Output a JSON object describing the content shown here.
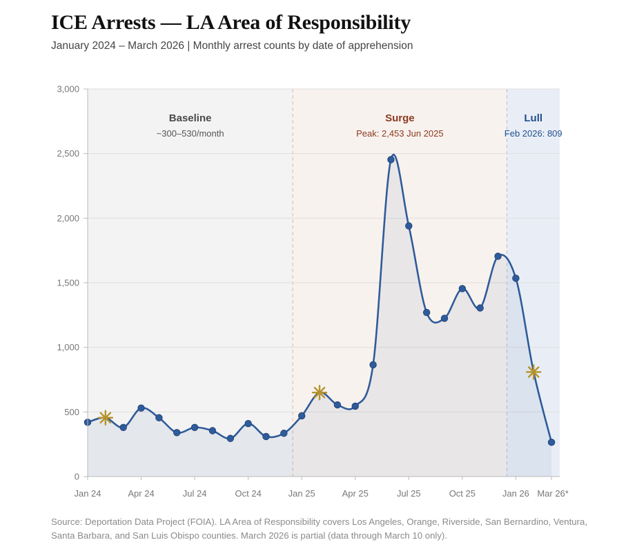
{
  "header": {
    "title": "ICE Arrests — LA Area of Responsibility",
    "subtitle": "January 2024 – March 2026  |  Monthly arrest counts by date of apprehension"
  },
  "source_note": "Source: Deportation Data Project (FOIA). LA Area of Responsibility covers Los Angeles, Orange, Riverside, San Bernardino, Ventura, Santa Barbara, and San Luis Obispo counties. March 2026 is partial (data through March 10 only).",
  "chart_data": {
    "type": "line",
    "ylim": [
      0,
      3000
    ],
    "y_ticks": [
      0,
      500,
      1000,
      1500,
      2000,
      2500,
      3000
    ],
    "y_tick_labels": [
      "0",
      "500",
      "1,000",
      "1,500",
      "2,000",
      "2,500",
      "3,000"
    ],
    "x_tick_labels": [
      "Jan 24",
      "Apr 24",
      "Jul 24",
      "Oct 24",
      "Jan 25",
      "Apr 25",
      "Jul 25",
      "Oct 25",
      "Jan 26",
      "Mar 26*"
    ],
    "x_tick_index": [
      0,
      3,
      6,
      9,
      12,
      15,
      18,
      21,
      24,
      26
    ],
    "x": [
      "2024-01",
      "2024-02",
      "2024-03",
      "2024-04",
      "2024-05",
      "2024-06",
      "2024-07",
      "2024-08",
      "2024-09",
      "2024-10",
      "2024-11",
      "2024-12",
      "2025-01",
      "2025-02",
      "2025-03",
      "2025-04",
      "2025-05",
      "2025-06",
      "2025-07",
      "2025-08",
      "2025-09",
      "2025-10",
      "2025-11",
      "2025-12",
      "2026-01",
      "2026-02",
      "2026-03"
    ],
    "series": [
      {
        "color": "#2f5b9a",
        "values": [
          420,
          455,
          380,
          530,
          455,
          340,
          380,
          355,
          295,
          410,
          310,
          335,
          470,
          650,
          555,
          545,
          865,
          2453,
          1940,
          1270,
          1225,
          1455,
          1305,
          1705,
          1535,
          809,
          265
        ],
        "star_markers": [
          1,
          13,
          25
        ]
      }
    ],
    "star_color": "#b5932a",
    "grid": true,
    "regions": [
      {
        "title": "Baseline",
        "subtitle": "~300–530/month",
        "start": 0,
        "end": 11.5,
        "color": "#f3f3f3",
        "text_color": "#4a4a4a",
        "sub_color": "#555555"
      },
      {
        "title": "Surge",
        "subtitle": "Peak: 2,453 Jun 2025",
        "start": 11.5,
        "end": 23.5,
        "color": "#f8f2ee",
        "text_color": "#8b3a1e",
        "sub_color": "#8b3a1e",
        "line_color": "#e3bfae"
      },
      {
        "title": "Lull",
        "subtitle": "Feb 2026: 809",
        "start": 23.5,
        "end": 26.5,
        "color": "#e9eef6",
        "text_color": "#1f4f8f",
        "sub_color": "#1f4f8f",
        "line_color": "#b7c6dc"
      }
    ]
  }
}
